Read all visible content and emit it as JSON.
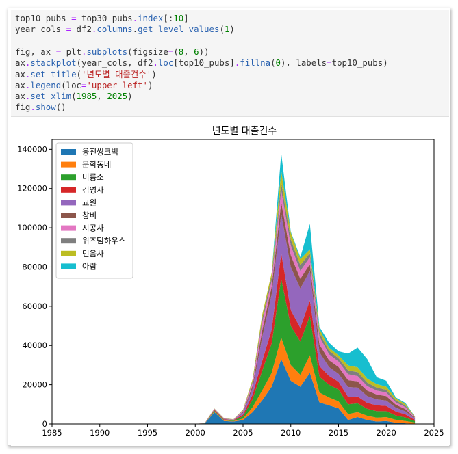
{
  "code": {
    "lines": [
      [
        {
          "t": "top10_pubs "
        },
        {
          "t": "=",
          "c": "op"
        },
        {
          "t": " top30_pubs"
        },
        {
          "t": ".",
          "c": "op"
        },
        {
          "t": "index",
          "c": "attr"
        },
        {
          "t": "[:"
        },
        {
          "t": "10",
          "c": "num"
        },
        {
          "t": "]"
        }
      ],
      [
        {
          "t": "year_cols "
        },
        {
          "t": "=",
          "c": "op"
        },
        {
          "t": " df2"
        },
        {
          "t": ".",
          "c": "op"
        },
        {
          "t": "columns",
          "c": "attr"
        },
        {
          "t": "."
        },
        {
          "t": "get_level_values",
          "c": "attr"
        },
        {
          "t": "("
        },
        {
          "t": "1",
          "c": "num"
        },
        {
          "t": ")"
        }
      ],
      [],
      [
        {
          "t": "fig, ax "
        },
        {
          "t": "=",
          "c": "op"
        },
        {
          "t": " plt"
        },
        {
          "t": ".",
          "c": "op"
        },
        {
          "t": "subplots",
          "c": "attr"
        },
        {
          "t": "(figsize"
        },
        {
          "t": "=",
          "c": "op"
        },
        {
          "t": "("
        },
        {
          "t": "8",
          "c": "num"
        },
        {
          "t": ", "
        },
        {
          "t": "6",
          "c": "num"
        },
        {
          "t": "))"
        }
      ],
      [
        {
          "t": "ax"
        },
        {
          "t": ".",
          "c": "op"
        },
        {
          "t": "stackplot",
          "c": "attr"
        },
        {
          "t": "(year_cols, df2"
        },
        {
          "t": ".",
          "c": "op"
        },
        {
          "t": "loc",
          "c": "attr"
        },
        {
          "t": "[top10_pubs]"
        },
        {
          "t": ".",
          "c": "op"
        },
        {
          "t": "fillna",
          "c": "attr"
        },
        {
          "t": "("
        },
        {
          "t": "0",
          "c": "num"
        },
        {
          "t": "), labels"
        },
        {
          "t": "=",
          "c": "op"
        },
        {
          "t": "top10_pubs)"
        }
      ],
      [
        {
          "t": "ax"
        },
        {
          "t": ".",
          "c": "op"
        },
        {
          "t": "set_title",
          "c": "attr"
        },
        {
          "t": "("
        },
        {
          "t": "'년도별 대출건수'",
          "c": "str"
        },
        {
          "t": ")"
        }
      ],
      [
        {
          "t": "ax"
        },
        {
          "t": ".",
          "c": "op"
        },
        {
          "t": "legend",
          "c": "attr"
        },
        {
          "t": "(loc"
        },
        {
          "t": "=",
          "c": "op"
        },
        {
          "t": "'upper left'",
          "c": "str"
        },
        {
          "t": ")"
        }
      ],
      [
        {
          "t": "ax"
        },
        {
          "t": ".",
          "c": "op"
        },
        {
          "t": "set_xlim",
          "c": "attr"
        },
        {
          "t": "("
        },
        {
          "t": "1985",
          "c": "num"
        },
        {
          "t": ", "
        },
        {
          "t": "2025",
          "c": "num"
        },
        {
          "t": ")"
        }
      ],
      [
        {
          "t": "fig"
        },
        {
          "t": ".",
          "c": "op"
        },
        {
          "t": "show",
          "c": "attr"
        },
        {
          "t": "()"
        }
      ]
    ]
  },
  "chart_data": {
    "type": "area",
    "stacked": true,
    "title": "년도별 대출건수",
    "xlim": [
      1985,
      2025
    ],
    "ylim": [
      0,
      145000
    ],
    "xticks": [
      1985,
      1990,
      1995,
      2000,
      2005,
      2010,
      2015,
      2020,
      2025
    ],
    "yticks": [
      0,
      20000,
      40000,
      60000,
      80000,
      100000,
      120000,
      140000
    ],
    "legend_loc": "upper left",
    "x": [
      2000,
      2001,
      2002,
      2003,
      2004,
      2005,
      2006,
      2007,
      2008,
      2009,
      2010,
      2011,
      2012,
      2013,
      2014,
      2015,
      2016,
      2017,
      2018,
      2019,
      2020,
      2021,
      2022,
      2023
    ],
    "series": [
      {
        "name": "웅진씽크빅",
        "color": "#1f77b4",
        "values": [
          0,
          300,
          6000,
          1500,
          1200,
          2000,
          6000,
          12000,
          19000,
          33000,
          22000,
          19000,
          26000,
          11000,
          9500,
          8000,
          2000,
          3500,
          2000,
          1200,
          1500,
          600,
          300,
          0
        ]
      },
      {
        "name": "문학동네",
        "color": "#ff7f0e",
        "values": [
          0,
          50,
          400,
          300,
          250,
          700,
          2500,
          5000,
          7000,
          11000,
          8000,
          6000,
          9000,
          5000,
          4000,
          3500,
          3000,
          2500,
          2200,
          2000,
          2000,
          1500,
          1200,
          700
        ]
      },
      {
        "name": "비룡소",
        "color": "#2ca02c",
        "values": [
          0,
          50,
          400,
          300,
          250,
          1200,
          4000,
          10000,
          15000,
          30000,
          20000,
          17000,
          20000,
          8000,
          6500,
          6000,
          5000,
          4500,
          3500,
          3300,
          3000,
          2200,
          1800,
          700
        ]
      },
      {
        "name": "김영사",
        "color": "#d62728",
        "values": [
          0,
          50,
          350,
          250,
          200,
          800,
          2500,
          5000,
          7000,
          13000,
          8000,
          7000,
          8000,
          5500,
          4500,
          4000,
          3800,
          3500,
          3000,
          3000,
          2700,
          2000,
          1600,
          600
        ]
      },
      {
        "name": "교원",
        "color": "#9467bd",
        "values": [
          0,
          20,
          200,
          150,
          100,
          1000,
          3000,
          12000,
          18000,
          20000,
          22000,
          20000,
          15000,
          7000,
          4500,
          4000,
          5000,
          4500,
          3500,
          3000,
          2700,
          2000,
          1500,
          600
        ]
      },
      {
        "name": "창비",
        "color": "#8c564b",
        "values": [
          0,
          20,
          200,
          150,
          100,
          500,
          1500,
          3500,
          4000,
          6000,
          6000,
          5000,
          3500,
          4000,
          3500,
          3500,
          3500,
          3200,
          2800,
          2500,
          2300,
          1500,
          1200,
          400
        ]
      },
      {
        "name": "시공사",
        "color": "#e377c2",
        "values": [
          0,
          20,
          200,
          150,
          100,
          500,
          1500,
          4000,
          3000,
          6000,
          5000,
          4000,
          3500,
          4000,
          3000,
          2800,
          3000,
          2700,
          2300,
          2000,
          1800,
          1200,
          1000,
          300
        ]
      },
      {
        "name": "위즈덤하우스",
        "color": "#7f7f7f",
        "values": [
          0,
          20,
          100,
          100,
          100,
          300,
          800,
          2000,
          2000,
          4000,
          3000,
          3000,
          2000,
          2000,
          1800,
          1700,
          2000,
          2000,
          1800,
          1500,
          1400,
          1000,
          800,
          200
        ]
      },
      {
        "name": "민음사",
        "color": "#bcbd22",
        "values": [
          0,
          20,
          100,
          100,
          100,
          300,
          1000,
          2000,
          2000,
          6000,
          3500,
          3000,
          2000,
          2000,
          1500,
          1500,
          2500,
          2500,
          2000,
          1800,
          1600,
          1000,
          800,
          200
        ]
      },
      {
        "name": "아람",
        "color": "#17becf",
        "values": [
          0,
          0,
          0,
          0,
          0,
          0,
          0,
          0,
          0,
          9000,
          500,
          1000,
          13000,
          1000,
          2700,
          2000,
          6000,
          10000,
          10000,
          3500,
          3000,
          500,
          500,
          100
        ]
      }
    ]
  }
}
